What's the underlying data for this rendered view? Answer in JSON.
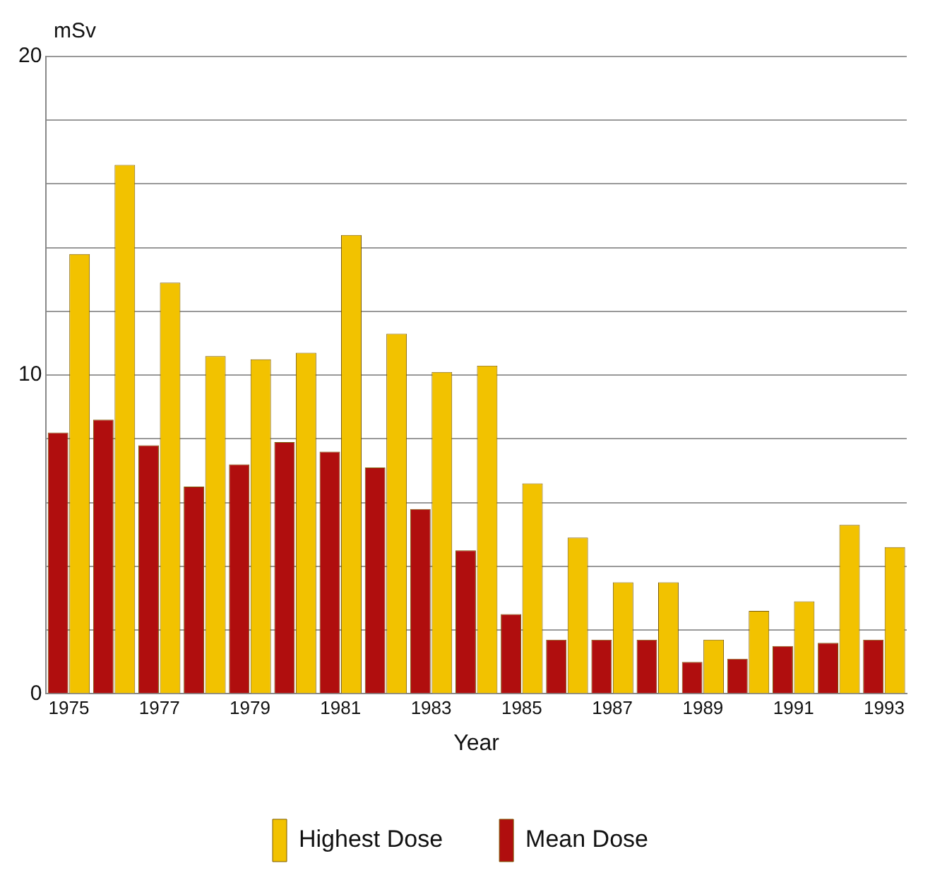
{
  "chart_data": {
    "type": "bar",
    "xlabel": "Year",
    "ylabel": "mSv",
    "categories": [
      "1975",
      null,
      "1977",
      null,
      "1979",
      null,
      "1981",
      null,
      "1983",
      null,
      "1985",
      null,
      "1987",
      null,
      "1989",
      null,
      "1991",
      null,
      "1993"
    ],
    "series": [
      {
        "name": "Highest Dose",
        "color": "#f2c200",
        "values": [
          13.8,
          16.6,
          12.9,
          10.6,
          10.5,
          10.7,
          14.4,
          11.3,
          10.1,
          10.3,
          6.6,
          4.9,
          3.5,
          3.5,
          1.7,
          2.6,
          2.9,
          5.3,
          4.6
        ]
      },
      {
        "name": "Mean Dose",
        "color": "#b00e0e",
        "values": [
          8.2,
          8.6,
          7.8,
          6.5,
          7.2,
          7.9,
          7.6,
          7.1,
          5.8,
          4.5,
          2.5,
          1.7,
          1.7,
          1.7,
          1.0,
          1.1,
          1.5,
          1.6,
          1.7
        ]
      }
    ],
    "ylim": [
      0,
      20
    ],
    "yticks": [
      0,
      {
        "value": 2,
        "label": null
      },
      {
        "value": 4,
        "label": null
      },
      {
        "value": 6,
        "label": null
      },
      {
        "value": 8,
        "label": null
      },
      10,
      {
        "value": 12,
        "label": null
      },
      {
        "value": 14,
        "label": null
      },
      {
        "value": 16,
        "label": null
      },
      {
        "value": 18,
        "label": null
      },
      20
    ],
    "grid": "y",
    "legend": "bottom"
  }
}
